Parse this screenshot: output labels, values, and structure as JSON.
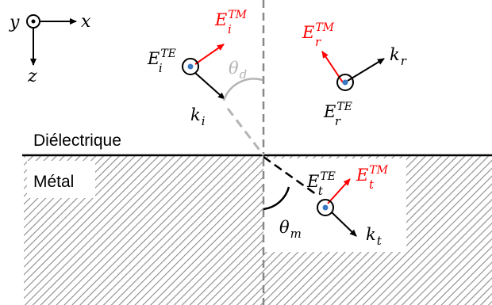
{
  "regions": {
    "dielectric": "Diélectrique",
    "metal": "Métal"
  },
  "axes": {
    "x": "x",
    "y": "y",
    "z": "z"
  },
  "incident": {
    "E_TE": {
      "base": "E",
      "sub": "i",
      "sup": "TE"
    },
    "E_TM": {
      "base": "E",
      "sub": "i",
      "sup": "TM"
    },
    "k": {
      "base": "k",
      "sub": "i"
    },
    "angle": {
      "base": "θ",
      "sub": "d"
    }
  },
  "reflected": {
    "E_TE": {
      "base": "E",
      "sub": "r",
      "sup": "TE"
    },
    "E_TM": {
      "base": "E",
      "sub": "r",
      "sup": "TM"
    },
    "k": {
      "base": "k",
      "sub": "r"
    }
  },
  "transmitted": {
    "E_TE": {
      "base": "E",
      "sub": "t",
      "sup": "TE"
    },
    "E_TM": {
      "base": "E",
      "sub": "t",
      "sup": "TM"
    },
    "k": {
      "base": "k",
      "sub": "t"
    },
    "angle": {
      "base": "θ",
      "sub": "m"
    }
  },
  "colors": {
    "tm_field": "#ff0000",
    "dot": "#3a78c3",
    "hatch": "#8c8c8c",
    "dashed_gray": "#b4b4b4",
    "ink": "#000000"
  }
}
